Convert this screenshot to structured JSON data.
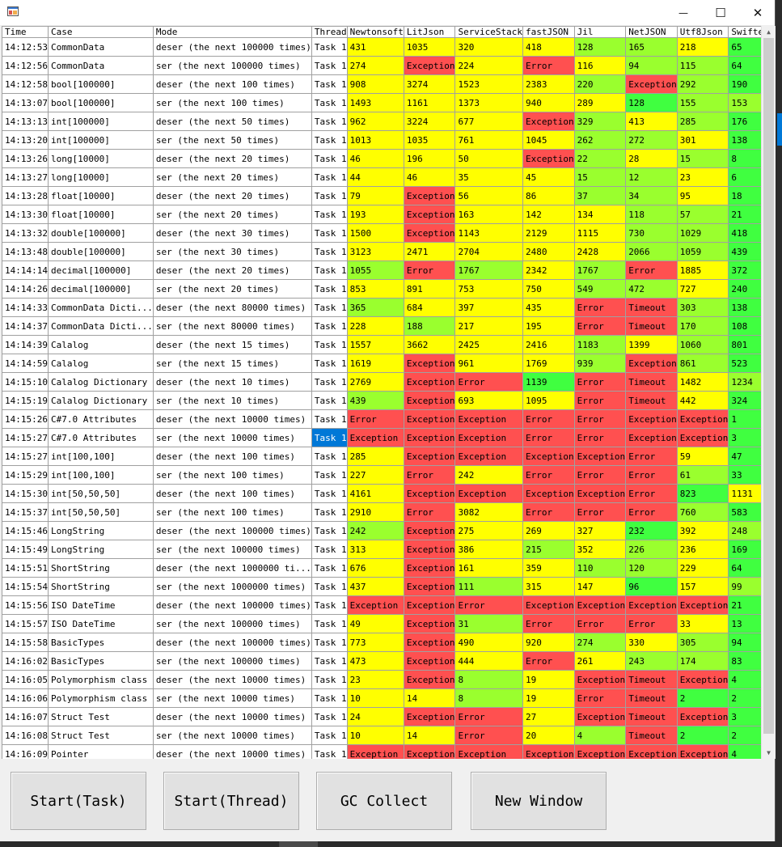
{
  "window": {
    "minimize_glyph": "—",
    "maximize_glyph": "☐",
    "close_glyph": "✕"
  },
  "columns": [
    "Time",
    "Case",
    "Mode",
    "Thread",
    "Newtonsoft",
    "LitJson",
    "ServiceStack",
    "fastJSON",
    "Jil",
    "NetJSON",
    "Utf8Json",
    "Swifter.J"
  ],
  "rows": [
    [
      "14:12:53",
      "CommonData",
      "deser (the next 100000 times)",
      "Task 1",
      "431",
      "1035",
      "320",
      "418",
      "128",
      "165",
      "218",
      "65"
    ],
    [
      "14:12:56",
      "CommonData",
      "ser (the next 100000 times)",
      "Task 1",
      "274",
      "Exception",
      "224",
      "Error",
      "116",
      "94",
      "115",
      "64"
    ],
    [
      "14:12:58",
      "bool[100000]",
      "deser (the next 100 times)",
      "Task 1",
      "908",
      "3274",
      "1523",
      "2383",
      "220",
      "Exception",
      "292",
      "190"
    ],
    [
      "14:13:07",
      "bool[100000]",
      "ser (the next 100 times)",
      "Task 1",
      "1493",
      "1161",
      "1373",
      "940",
      "289",
      "128",
      "155",
      "153"
    ],
    [
      "14:13:13",
      "int[100000]",
      "deser (the next 50 times)",
      "Task 1",
      "962",
      "3224",
      "677",
      "Exception",
      "329",
      "413",
      "285",
      "176"
    ],
    [
      "14:13:20",
      "int[100000]",
      "ser (the next 50 times)",
      "Task 1",
      "1013",
      "1035",
      "761",
      "1045",
      "262",
      "272",
      "301",
      "138"
    ],
    [
      "14:13:26",
      "long[10000]",
      "deser (the next 20 times)",
      "Task 1",
      "46",
      "196",
      "50",
      "Exception",
      "22",
      "28",
      "15",
      "8"
    ],
    [
      "14:13:27",
      "long[10000]",
      "ser (the next 20 times)",
      "Task 1",
      "44",
      "46",
      "35",
      "45",
      "15",
      "12",
      "23",
      "6"
    ],
    [
      "14:13:28",
      "float[10000]",
      "deser (the next 20 times)",
      "Task 1",
      "79",
      "Exception",
      "56",
      "86",
      "37",
      "34",
      "95",
      "18"
    ],
    [
      "14:13:30",
      "float[10000]",
      "ser (the next 20 times)",
      "Task 1",
      "193",
      "Exception",
      "163",
      "142",
      "134",
      "118",
      "57",
      "21"
    ],
    [
      "14:13:32",
      "double[100000]",
      "deser (the next 30 times)",
      "Task 1",
      "1500",
      "Exception",
      "1143",
      "2129",
      "1115",
      "730",
      "1029",
      "418"
    ],
    [
      "14:13:48",
      "double[100000]",
      "ser (the next 30 times)",
      "Task 1",
      "3123",
      "2471",
      "2704",
      "2480",
      "2428",
      "2066",
      "1059",
      "439"
    ],
    [
      "14:14:14",
      "decimal[100000]",
      "deser (the next 20 times)",
      "Task 1",
      "1055",
      "Error",
      "1767",
      "2342",
      "1767",
      "Error",
      "1885",
      "372"
    ],
    [
      "14:14:26",
      "decimal[100000]",
      "ser (the next 20 times)",
      "Task 1",
      "853",
      "891",
      "753",
      "750",
      "549",
      "472",
      "727",
      "240"
    ],
    [
      "14:14:33",
      "CommonData Dicti...",
      "deser (the next 80000 times)",
      "Task 1",
      "365",
      "684",
      "397",
      "435",
      "Error",
      "Timeout",
      "303",
      "138"
    ],
    [
      "14:14:37",
      "CommonData Dicti...",
      "ser (the next 80000 times)",
      "Task 1",
      "228",
      "188",
      "217",
      "195",
      "Error",
      "Timeout",
      "170",
      "108"
    ],
    [
      "14:14:39",
      "Calalog",
      "deser (the next 15 times)",
      "Task 1",
      "1557",
      "3662",
      "2425",
      "2416",
      "1183",
      "1399",
      "1060",
      "801"
    ],
    [
      "14:14:59",
      "Calalog",
      "ser (the next 15 times)",
      "Task 1",
      "1619",
      "Exception",
      "961",
      "1769",
      "939",
      "Exception",
      "861",
      "523"
    ],
    [
      "14:15:10",
      "Calalog Dictionary",
      "deser (the next 10 times)",
      "Task 1",
      "2769",
      "Exception",
      "Error",
      "1139",
      "Error",
      "Timeout",
      "1482",
      "1234"
    ],
    [
      "14:15:19",
      "Calalog Dictionary",
      "ser (the next 10 times)",
      "Task 1",
      "439",
      "Exception",
      "693",
      "1095",
      "Error",
      "Timeout",
      "442",
      "324"
    ],
    [
      "14:15:26",
      "C#7.0 Attributes",
      "deser (the next 10000 times)",
      "Task 1",
      "Error",
      "Exception",
      "Exception",
      "Error",
      "Error",
      "Exception",
      "Exception",
      "1"
    ],
    [
      "14:15:27",
      "C#7.0 Attributes",
      "ser (the next 10000 times)",
      "Task 1",
      "Exception",
      "Exception",
      "Exception",
      "Error",
      "Error",
      "Exception",
      "Exception",
      "3"
    ],
    [
      "14:15:27",
      "int[100,100]",
      "deser (the next 100 times)",
      "Task 1",
      "285",
      "Exception",
      "Exception",
      "Exception",
      "Exception",
      "Error",
      "59",
      "47"
    ],
    [
      "14:15:29",
      "int[100,100]",
      "ser (the next 100 times)",
      "Task 1",
      "227",
      "Error",
      "242",
      "Error",
      "Error",
      "Error",
      "61",
      "33"
    ],
    [
      "14:15:30",
      "int[50,50,50]",
      "deser (the next 100 times)",
      "Task 1",
      "4161",
      "Exception",
      "Exception",
      "Exception",
      "Exception",
      "Error",
      "823",
      "1131"
    ],
    [
      "14:15:37",
      "int[50,50,50]",
      "ser (the next 100 times)",
      "Task 1",
      "2910",
      "Error",
      "3082",
      "Error",
      "Error",
      "Error",
      "760",
      "583"
    ],
    [
      "14:15:46",
      "LongString",
      "deser (the next 100000 times)",
      "Task 1",
      "242",
      "Exception",
      "275",
      "269",
      "327",
      "232",
      "392",
      "248"
    ],
    [
      "14:15:49",
      "LongString",
      "ser (the next 100000 times)",
      "Task 1",
      "313",
      "Exception",
      "386",
      "215",
      "352",
      "226",
      "236",
      "169"
    ],
    [
      "14:15:51",
      "ShortString",
      "deser (the next 1000000 ti...",
      "Task 1",
      "676",
      "Exception",
      "161",
      "359",
      "110",
      "120",
      "229",
      "64"
    ],
    [
      "14:15:54",
      "ShortString",
      "ser (the next 1000000 times)",
      "Task 1",
      "437",
      "Exception",
      "111",
      "315",
      "147",
      "96",
      "157",
      "99"
    ],
    [
      "14:15:56",
      "ISO DateTime",
      "deser (the next 100000 times)",
      "Task 1",
      "Exception",
      "Exception",
      "Error",
      "Exception",
      "Exception",
      "Exception",
      "Exception",
      "21"
    ],
    [
      "14:15:57",
      "ISO DateTime",
      "ser (the next 100000 times)",
      "Task 1",
      "49",
      "Exception",
      "31",
      "Error",
      "Error",
      "Error",
      "33",
      "13"
    ],
    [
      "14:15:58",
      "BasicTypes",
      "deser (the next 100000 times)",
      "Task 1",
      "773",
      "Exception",
      "490",
      "920",
      "274",
      "330",
      "305",
      "94"
    ],
    [
      "14:16:02",
      "BasicTypes",
      "ser (the next 100000 times)",
      "Task 1",
      "473",
      "Exception",
      "444",
      "Error",
      "261",
      "243",
      "174",
      "83"
    ],
    [
      "14:16:05",
      "Polymorphism class",
      "deser (the next 10000 times)",
      "Task 1",
      "23",
      "Exception",
      "8",
      "19",
      "Exception",
      "Timeout",
      "Exception",
      "4"
    ],
    [
      "14:16:06",
      "Polymorphism class",
      "ser (the next 10000 times)",
      "Task 1",
      "10",
      "14",
      "8",
      "19",
      "Error",
      "Timeout",
      "2",
      "2"
    ],
    [
      "14:16:07",
      "Struct Test",
      "deser (the next 10000 times)",
      "Task 1",
      "24",
      "Exception",
      "Error",
      "27",
      "Exception",
      "Timeout",
      "Exception",
      "3"
    ],
    [
      "14:16:08",
      "Struct Test",
      "ser (the next 10000 times)",
      "Task 1",
      "10",
      "14",
      "Error",
      "20",
      "4",
      "Timeout",
      "2",
      "2"
    ],
    [
      "14:16:09",
      "Pointer",
      "deser (the next 10000 times)",
      "Task 1",
      "Exception",
      "Exception",
      "Exception",
      "Exception",
      "Exception",
      "Exception",
      "Exception",
      "4"
    ]
  ],
  "cell_colors": {
    "yellow": "#ffff00",
    "red": "#ff5050",
    "bright_green": "#40ff40",
    "lime": "#9aff2e"
  },
  "buttons": {
    "start_task": "Start(Task)",
    "start_thread": "Start(Thread)",
    "gc_collect": "GC Collect",
    "new_window": "New Window"
  },
  "selection_color": "#0078d7",
  "icons": {
    "app": "app-window-icon",
    "scroll_up": "scroll-up-arrow-icon",
    "scroll_down": "scroll-down-arrow-icon"
  }
}
